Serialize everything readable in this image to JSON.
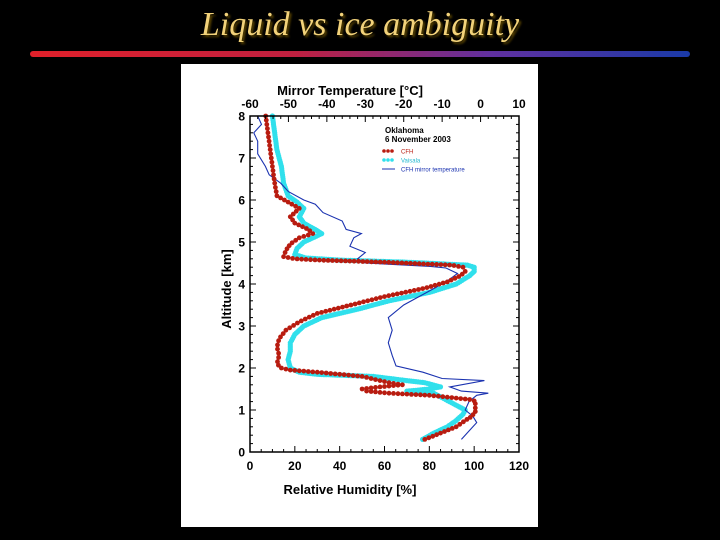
{
  "slide": {
    "title": "Liquid vs ice ambiguity"
  },
  "chart_data": {
    "type": "scatter",
    "title_lines": [
      "Oklahoma",
      "6 November 2003"
    ],
    "xlabel": "Relative Humidity [%]",
    "x2label": "Mirror Temperature [°C]",
    "ylabel": "Altitude [km]",
    "xlim": [
      0,
      120
    ],
    "x2lim": [
      -60,
      10
    ],
    "ylim": [
      0,
      8
    ],
    "x_ticks": [
      0,
      20,
      40,
      60,
      80,
      100,
      120
    ],
    "x2_ticks": [
      -60,
      -50,
      -40,
      -30,
      -20,
      -10,
      0,
      10
    ],
    "y_ticks": [
      0,
      1,
      2,
      3,
      4,
      5,
      6,
      7,
      8
    ],
    "legend_position": "top-right",
    "grid": false,
    "colors": {
      "cfh": "#b81c10",
      "vaisala": "#30e0ec",
      "mirror": "#1a32b0"
    },
    "series": [
      {
        "name": "CFH",
        "axis": "bottom",
        "marker": "dots",
        "points": [
          [
            78,
            0.3
          ],
          [
            85,
            0.45
          ],
          [
            92,
            0.6
          ],
          [
            96,
            0.75
          ],
          [
            99,
            0.85
          ],
          [
            101,
            1.0
          ],
          [
            100,
            1.1
          ],
          [
            101,
            1.2
          ],
          [
            98,
            1.25
          ],
          [
            80,
            1.35
          ],
          [
            62,
            1.4
          ],
          [
            52,
            1.45
          ],
          [
            50,
            1.5
          ],
          [
            58,
            1.55
          ],
          [
            68,
            1.6
          ],
          [
            62,
            1.65
          ],
          [
            58,
            1.7
          ],
          [
            50,
            1.8
          ],
          [
            30,
            1.9
          ],
          [
            18,
            1.95
          ],
          [
            14,
            2.0
          ],
          [
            12,
            2.1
          ],
          [
            13,
            2.3
          ],
          [
            12,
            2.5
          ],
          [
            13,
            2.7
          ],
          [
            16,
            2.9
          ],
          [
            22,
            3.1
          ],
          [
            30,
            3.3
          ],
          [
            45,
            3.5
          ],
          [
            60,
            3.7
          ],
          [
            78,
            3.9
          ],
          [
            88,
            4.05
          ],
          [
            94,
            4.2
          ],
          [
            96,
            4.3
          ],
          [
            95,
            4.4
          ],
          [
            90,
            4.45
          ],
          [
            60,
            4.52
          ],
          [
            30,
            4.57
          ],
          [
            20,
            4.6
          ],
          [
            15,
            4.65
          ],
          [
            16,
            4.8
          ],
          [
            18,
            4.95
          ],
          [
            22,
            5.1
          ],
          [
            28,
            5.2
          ],
          [
            26,
            5.3
          ],
          [
            20,
            5.45
          ],
          [
            18,
            5.6
          ],
          [
            22,
            5.8
          ],
          [
            17,
            5.95
          ],
          [
            12,
            6.1
          ],
          [
            11,
            6.4
          ],
          [
            10,
            6.8
          ],
          [
            9,
            7.2
          ],
          [
            8,
            7.6
          ],
          [
            7,
            8.0
          ]
        ]
      },
      {
        "name": "Vaisala",
        "axis": "bottom",
        "marker": "dots",
        "points": [
          [
            77,
            0.3
          ],
          [
            82,
            0.45
          ],
          [
            88,
            0.6
          ],
          [
            92,
            0.75
          ],
          [
            95,
            0.9
          ],
          [
            96,
            1.0
          ],
          [
            82,
            1.4
          ],
          [
            70,
            1.45
          ],
          [
            80,
            1.5
          ],
          [
            85,
            1.55
          ],
          [
            78,
            1.65
          ],
          [
            70,
            1.7
          ],
          [
            55,
            1.8
          ],
          [
            30,
            1.85
          ],
          [
            22,
            1.9
          ],
          [
            18,
            2.0
          ],
          [
            17,
            2.2
          ],
          [
            18,
            2.4
          ],
          [
            18,
            2.6
          ],
          [
            20,
            2.8
          ],
          [
            24,
            3.0
          ],
          [
            32,
            3.2
          ],
          [
            48,
            3.4
          ],
          [
            62,
            3.6
          ],
          [
            80,
            3.8
          ],
          [
            92,
            4.0
          ],
          [
            98,
            4.2
          ],
          [
            100,
            4.3
          ],
          [
            100,
            4.4
          ],
          [
            97,
            4.45
          ],
          [
            70,
            4.52
          ],
          [
            40,
            4.57
          ],
          [
            25,
            4.62
          ],
          [
            20,
            4.7
          ],
          [
            21,
            4.85
          ],
          [
            24,
            5.0
          ],
          [
            28,
            5.1
          ],
          [
            32,
            5.2
          ],
          [
            29,
            5.3
          ],
          [
            24,
            5.45
          ],
          [
            22,
            5.6
          ],
          [
            24,
            5.8
          ],
          [
            21,
            5.95
          ],
          [
            17,
            6.1
          ],
          [
            15,
            6.4
          ],
          [
            14,
            6.8
          ],
          [
            12,
            7.2
          ],
          [
            11,
            7.6
          ],
          [
            10,
            8.0
          ]
        ]
      },
      {
        "name": "CFH mirror temperature",
        "axis": "top",
        "marker": "line",
        "points": [
          [
            -5,
            0.3
          ],
          [
            -3,
            0.5
          ],
          [
            -1,
            0.7
          ],
          [
            -2,
            0.85
          ],
          [
            -4,
            1.0
          ],
          [
            -3,
            1.2
          ],
          [
            -1,
            1.35
          ],
          [
            2,
            1.4
          ],
          [
            -5,
            1.45
          ],
          [
            -8,
            1.55
          ],
          [
            1,
            1.7
          ],
          [
            -10,
            1.75
          ],
          [
            -15,
            1.9
          ],
          [
            -22,
            2.05
          ],
          [
            -23,
            2.3
          ],
          [
            -24,
            2.6
          ],
          [
            -23,
            2.9
          ],
          [
            -24,
            3.2
          ],
          [
            -20,
            3.5
          ],
          [
            -14,
            3.8
          ],
          [
            -9,
            4.05
          ],
          [
            -6,
            4.25
          ],
          [
            -9,
            4.38
          ],
          [
            -13,
            4.42
          ],
          [
            -30,
            4.5
          ],
          [
            -32,
            4.6
          ],
          [
            -30,
            4.75
          ],
          [
            -34,
            4.9
          ],
          [
            -33,
            5.1
          ],
          [
            -31,
            5.2
          ],
          [
            -35,
            5.3
          ],
          [
            -36,
            5.5
          ],
          [
            -41,
            5.7
          ],
          [
            -43,
            5.9
          ],
          [
            -46,
            6.0
          ],
          [
            -50,
            6.2
          ],
          [
            -52,
            6.4
          ],
          [
            -55,
            6.6
          ],
          [
            -56,
            6.8
          ],
          [
            -58,
            7.1
          ],
          [
            -58,
            7.4
          ],
          [
            -59,
            7.6
          ],
          [
            -57,
            7.8
          ],
          [
            -58,
            8.0
          ]
        ]
      }
    ]
  }
}
